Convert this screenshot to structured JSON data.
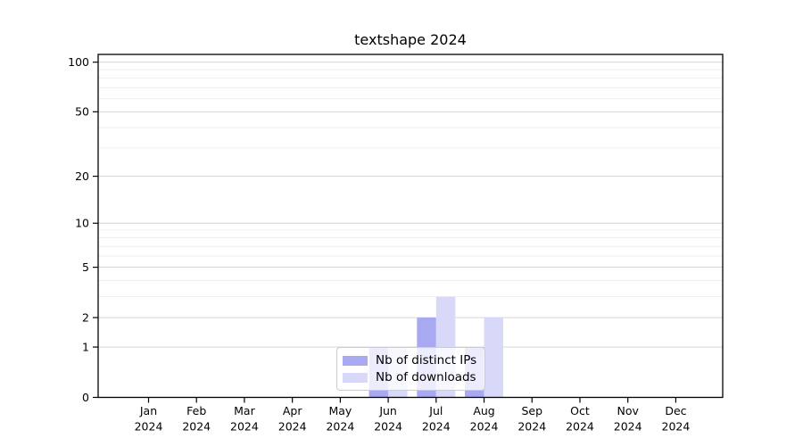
{
  "title": "textshape 2024",
  "chart_data": {
    "type": "bar",
    "title": "textshape 2024",
    "categories": [
      "Jan",
      "Feb",
      "Mar",
      "Apr",
      "May",
      "Jun",
      "Jul",
      "Aug",
      "Sep",
      "Oct",
      "Nov",
      "Dec"
    ],
    "year": "2024",
    "series": [
      {
        "name": "Nb of distinct IPs",
        "color": "#a9a9f1",
        "values": [
          0,
          0,
          0,
          0,
          0,
          1,
          2,
          1,
          0,
          0,
          0,
          0
        ]
      },
      {
        "name": "Nb of downloads",
        "color": "#d8d8f8",
        "values": [
          0,
          0,
          0,
          0,
          0,
          1,
          3,
          2,
          0,
          0,
          0,
          0
        ]
      }
    ],
    "xlabel": "",
    "ylabel": "",
    "y_axis": {
      "scale": "log1p",
      "ticks": [
        0,
        1,
        2,
        5,
        10,
        20,
        50,
        100
      ],
      "tick_labels": [
        "0",
        "1",
        "2",
        "5",
        "10",
        "20",
        "50",
        "100"
      ],
      "minor_gridlines": [
        3,
        4,
        6,
        7,
        8,
        9,
        30,
        40,
        60,
        70,
        80,
        90
      ],
      "ylim": [
        0,
        110
      ]
    },
    "grid": true,
    "legend_position": "bottom-center"
  },
  "colors": {
    "background": "#ffffff",
    "axis": "#000000",
    "major_gridline": "#d0d0d0",
    "minor_gridline": "#ececec",
    "legend_border": "#cccccc",
    "text": "#000000"
  }
}
